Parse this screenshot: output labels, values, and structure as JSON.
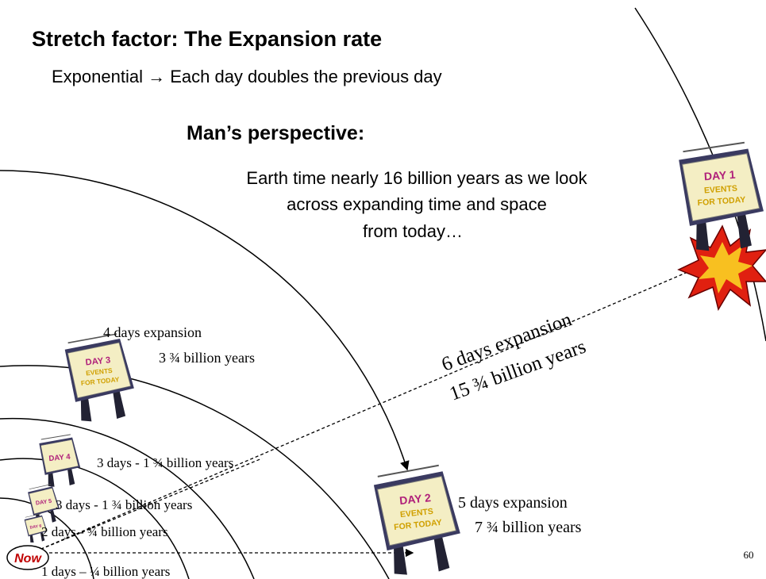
{
  "title": "Stretch factor:   The Expansion rate",
  "subtitle": "Exponential → Each day doubles the previous day",
  "perspective": {
    "heading": "Man’s perspective:",
    "lines": [
      "Earth time nearly 16 billion years as we look",
      "across expanding time and space",
      "from today…"
    ]
  },
  "signs": [
    {
      "day": "DAY 1",
      "lines": [
        "EVENTS",
        "FOR TODAY"
      ]
    },
    {
      "day": "DAY 2",
      "lines": [
        "EVENTS",
        "FOR TODAY"
      ]
    },
    {
      "day": "DAY 3",
      "lines": [
        "EVENTS",
        "FOR TODAY"
      ]
    },
    {
      "day": "DAY 4",
      "lines": []
    },
    {
      "day": "DAY 5",
      "lines": []
    },
    {
      "day": "DAY 6",
      "lines": []
    }
  ],
  "labels": [
    "4 days expansion",
    "3 ¾ billion years",
    "3 days - 1 ¾ billion years",
    "3 days - 1 ¾ billion years",
    "2 days - ¾ billion years",
    "1 days – ¼ billion years",
    "5 days expansion",
    "7 ¾ billion years",
    "6 days expansion",
    "15 ¾ billion years"
  ],
  "now": "Now",
  "page_number": "60"
}
